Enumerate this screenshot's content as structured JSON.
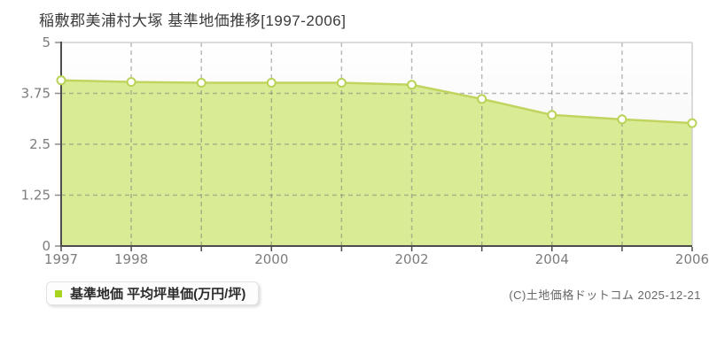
{
  "title": "稲敷郡美浦村大塚 基準地価推移[1997-2006]",
  "legend": {
    "label": "基準地価 平均坪単価(万円/坪)",
    "marker_color": "#a8d420"
  },
  "copyright": "(C)土地価格ドットコム 2025-12-21",
  "chart_data": {
    "type": "area",
    "title": "稲敷郡美浦村大塚 基準地価推移[1997-2006]",
    "x": [
      1997,
      1998,
      1999,
      2000,
      2001,
      2002,
      2003,
      2004,
      2005,
      2006
    ],
    "series": [
      {
        "name": "基準地価 平均坪単価(万円/坪)",
        "values": [
          4.07,
          4.03,
          4.01,
          4.01,
          4.01,
          3.96,
          3.61,
          3.22,
          3.11,
          3.02
        ]
      }
    ],
    "xlabel": "",
    "ylabel": "",
    "ylim": [
      0,
      5
    ],
    "yticks": [
      0,
      1.25,
      2.5,
      3.75,
      5
    ],
    "ytick_labels": [
      "0",
      "1.25",
      "2.5",
      "3.75",
      "5"
    ],
    "xtick_labels_shown": [
      "1997",
      "1998",
      "2000",
      "2002",
      "2004",
      "2006"
    ],
    "grid": "dashed",
    "legend_position": "bottom-left",
    "colors": {
      "fill": "#d9ec95",
      "line": "#c0d45f",
      "marker_fill": "#ffffff",
      "marker_stroke": "#b9d356",
      "axis": "#4d4d4d",
      "border": "#cfcfcf",
      "grid": "rgba(120,120,120,0.5)",
      "tick_label": "#7d7d7d",
      "plot_bg_top": "#ffffff",
      "plot_bg_bottom": "#f0f0f0"
    }
  }
}
